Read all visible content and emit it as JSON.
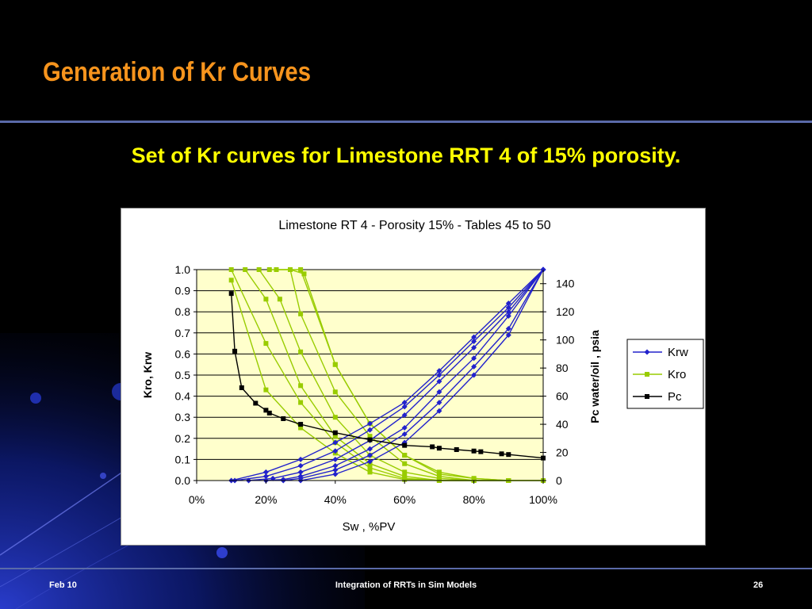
{
  "slide": {
    "title": "Generation of Kr Curves",
    "subtitle": "Set of Kr curves for Limestone RRT 4 of 15% porosity."
  },
  "footer": {
    "date": "Feb 10",
    "center": "Integration of RRTs in Sim Models",
    "page": "26"
  },
  "chart_data": {
    "type": "line",
    "title": "Limestone RT 4 - Porosity 15% - Tables 45 to 50",
    "xlabel": "Sw , %PV",
    "ylabel": "Kro, Krw",
    "y2label": "Pc water/oil , psia",
    "xlim": [
      0,
      100
    ],
    "ylim": [
      0,
      1.0
    ],
    "y2lim": [
      0,
      150
    ],
    "x_ticks": [
      "0%",
      "20%",
      "40%",
      "60%",
      "80%",
      "100%"
    ],
    "x_tick_values": [
      0,
      20,
      40,
      60,
      80,
      100
    ],
    "y_ticks": [
      "0.0",
      "0.1",
      "0.2",
      "0.3",
      "0.4",
      "0.5",
      "0.6",
      "0.7",
      "0.8",
      "0.9",
      "1.0"
    ],
    "y_tick_values": [
      0,
      0.1,
      0.2,
      0.3,
      0.4,
      0.5,
      0.6,
      0.7,
      0.8,
      0.9,
      1.0
    ],
    "y2_ticks": [
      "0",
      "20",
      "40",
      "60",
      "80",
      "100",
      "120",
      "140"
    ],
    "y2_tick_values": [
      0,
      20,
      40,
      60,
      80,
      100,
      120,
      140
    ],
    "grid": true,
    "legend_position": "right",
    "colors": {
      "krw": "#2222cc",
      "kro": "#99cc00",
      "pc": "#000000",
      "plot_bg": "#ffffcc",
      "grid": "#000000"
    },
    "legend": [
      {
        "label": "Krw",
        "series": "krw",
        "marker": "diamond"
      },
      {
        "label": "Kro",
        "series": "kro",
        "marker": "square"
      },
      {
        "label": "Pc",
        "series": "pc",
        "marker": "square"
      }
    ],
    "series": [
      {
        "name": "Krw",
        "group": "krw",
        "x": [
          10,
          20,
          30,
          40,
          50,
          60,
          70,
          80,
          90,
          100
        ],
        "y": [
          0,
          0.04,
          0.1,
          0.18,
          0.27,
          0.37,
          0.52,
          0.68,
          0.84,
          1.0
        ]
      },
      {
        "name": "Krw",
        "group": "krw",
        "x": [
          11,
          20,
          30,
          40,
          50,
          60,
          70,
          80,
          90,
          100
        ],
        "y": [
          0,
          0.02,
          0.07,
          0.14,
          0.24,
          0.35,
          0.5,
          0.66,
          0.82,
          1.0
        ]
      },
      {
        "name": "Krw",
        "group": "krw",
        "x": [
          15,
          22,
          30,
          40,
          50,
          60,
          70,
          80,
          90,
          100
        ],
        "y": [
          0,
          0.01,
          0.04,
          0.1,
          0.19,
          0.31,
          0.47,
          0.63,
          0.8,
          1.0
        ]
      },
      {
        "name": "Krw",
        "group": "krw",
        "x": [
          20,
          25,
          30,
          40,
          50,
          60,
          70,
          80,
          90,
          100
        ],
        "y": [
          0,
          0.005,
          0.02,
          0.07,
          0.15,
          0.25,
          0.42,
          0.58,
          0.78,
          1.0
        ]
      },
      {
        "name": "Krw",
        "group": "krw",
        "x": [
          25,
          30,
          40,
          50,
          60,
          70,
          80,
          90,
          100
        ],
        "y": [
          0,
          0.01,
          0.05,
          0.12,
          0.22,
          0.37,
          0.54,
          0.72,
          1.0
        ]
      },
      {
        "name": "Krw",
        "group": "krw",
        "x": [
          30,
          40,
          50,
          60,
          70,
          80,
          90,
          100
        ],
        "y": [
          0,
          0.03,
          0.09,
          0.18,
          0.33,
          0.5,
          0.69,
          1.0
        ]
      },
      {
        "name": "Kro",
        "group": "kro",
        "x": [
          10,
          20,
          30,
          40,
          50,
          60,
          70,
          80
        ],
        "y": [
          1.0,
          0.65,
          0.37,
          0.18,
          0.06,
          0.01,
          0.0,
          0.0
        ]
      },
      {
        "name": "Kro",
        "group": "kro",
        "x": [
          10,
          20,
          30,
          40,
          50,
          60,
          70,
          80
        ],
        "y": [
          0.95,
          0.43,
          0.25,
          0.13,
          0.04,
          0.005,
          0.0,
          0.0
        ]
      },
      {
        "name": "Kro",
        "group": "kro",
        "x": [
          14,
          20,
          30,
          40,
          50,
          60,
          70,
          80,
          90
        ],
        "y": [
          1.0,
          0.86,
          0.45,
          0.21,
          0.08,
          0.02,
          0.0,
          0.0,
          0.0
        ]
      },
      {
        "name": "Kro",
        "group": "kro",
        "x": [
          18,
          24,
          30,
          40,
          50,
          60,
          70,
          80,
          90
        ],
        "y": [
          1.0,
          0.86,
          0.61,
          0.3,
          0.12,
          0.04,
          0.01,
          0.0,
          0.0
        ]
      },
      {
        "name": "Kro",
        "group": "kro",
        "x": [
          21,
          27,
          30,
          40,
          50,
          60,
          70,
          80,
          90
        ],
        "y": [
          1.0,
          1.0,
          0.79,
          0.42,
          0.21,
          0.08,
          0.02,
          0.0,
          0.0
        ]
      },
      {
        "name": "Kro",
        "group": "kro",
        "x": [
          23,
          30,
          40,
          50,
          60,
          70,
          80,
          90,
          100
        ],
        "y": [
          1.0,
          1.0,
          0.55,
          0.27,
          0.12,
          0.04,
          0.01,
          0.0,
          0.0
        ]
      },
      {
        "name": "Kro",
        "group": "kro",
        "x": [
          27,
          31,
          40,
          50,
          60,
          70,
          80,
          90,
          100
        ],
        "y": [
          1.0,
          0.98,
          0.55,
          0.27,
          0.12,
          0.03,
          0.01,
          0.0,
          0.0
        ]
      },
      {
        "name": "Pc",
        "group": "pc",
        "axis": "y2",
        "x": [
          10,
          11,
          13,
          17,
          20,
          21,
          25,
          30,
          40,
          50,
          60,
          68,
          70,
          75,
          80,
          82,
          88,
          90,
          100
        ],
        "y": [
          133,
          92,
          66,
          55,
          50,
          48,
          44,
          40,
          34,
          29,
          25,
          24,
          23,
          22,
          21,
          20.5,
          19,
          18.5,
          16
        ]
      }
    ]
  }
}
